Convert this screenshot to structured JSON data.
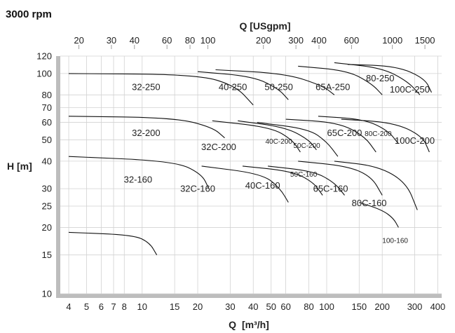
{
  "chart_data": {
    "type": "line",
    "title": "3000 rpm",
    "xlabel_bottom": {
      "main": "Q",
      "unit": "[m³/h]"
    },
    "xlabel_top": "Q [USgpm]",
    "ylabel": "H [m]",
    "x_scale": "log",
    "y_scale": "log",
    "xlim": [
      3.6,
      420
    ],
    "ylim": [
      10,
      120
    ],
    "grid": true,
    "x_ticks_bottom": [
      "4",
      "5",
      "6",
      "7",
      "8",
      "10",
      "15",
      "20",
      "30",
      "40",
      "50",
      "60",
      "80",
      "100",
      "150",
      "200",
      "300",
      "400"
    ],
    "x_ticks_top": [
      "20",
      "30",
      "40",
      "60",
      "80",
      "100",
      "200",
      "300",
      "400",
      "600",
      "1000",
      "1500"
    ],
    "y_ticks": [
      "10",
      "15",
      "20",
      "25",
      "30",
      "40",
      "50",
      "60",
      "70",
      "80",
      "100",
      "120"
    ],
    "series": [
      {
        "name": "32-250",
        "points": [
          [
            4,
            100
          ],
          [
            20,
            99
          ],
          [
            32,
            88
          ],
          [
            40,
            72
          ]
        ]
      },
      {
        "name": "40-250",
        "points": [
          [
            20,
            102
          ],
          [
            40,
            97
          ],
          [
            55,
            85
          ],
          [
            62,
            76
          ]
        ]
      },
      {
        "name": "50-250",
        "points": [
          [
            25,
            104
          ],
          [
            60,
            100
          ],
          [
            95,
            88
          ],
          [
            110,
            80
          ]
        ]
      },
      {
        "name": "65A-250",
        "points": [
          [
            70,
            108
          ],
          [
            130,
            103
          ],
          [
            175,
            90
          ],
          [
            200,
            80
          ]
        ]
      },
      {
        "name": "80-250",
        "points": [
          [
            110,
            112
          ],
          [
            200,
            106
          ],
          [
            275,
            92
          ],
          [
            320,
            80
          ]
        ]
      },
      {
        "name": "100C-250",
        "points": [
          [
            130,
            110
          ],
          [
            240,
            108
          ],
          [
            340,
            95
          ],
          [
            370,
            82
          ]
        ]
      },
      {
        "name": "32-200",
        "points": [
          [
            4,
            64
          ],
          [
            15,
            63
          ],
          [
            24,
            57
          ],
          [
            28,
            51
          ]
        ]
      },
      {
        "name": "32C-200",
        "points": [
          [
            24,
            61
          ],
          [
            50,
            57
          ],
          [
            65,
            50
          ],
          [
            72,
            44
          ]
        ]
      },
      {
        "name": "40C-200",
        "points": [
          [
            33,
            61
          ],
          [
            60,
            57
          ],
          [
            80,
            50
          ],
          [
            88,
            45
          ]
        ]
      },
      {
        "name": "50C-200",
        "points": [
          [
            42,
            60
          ],
          [
            80,
            56
          ],
          [
            100,
            49
          ],
          [
            115,
            42
          ]
        ]
      },
      {
        "name": "65C-200",
        "points": [
          [
            60,
            62
          ],
          [
            115,
            60
          ],
          [
            160,
            52
          ],
          [
            185,
            44
          ]
        ]
      },
      {
        "name": "80C-200",
        "points": [
          [
            90,
            64
          ],
          [
            160,
            62
          ],
          [
            215,
            55
          ],
          [
            245,
            48
          ]
        ]
      },
      {
        "name": "100C-200",
        "points": [
          [
            120,
            62
          ],
          [
            230,
            60
          ],
          [
            330,
            52
          ],
          [
            360,
            44
          ]
        ]
      },
      {
        "name": "32-160",
        "points": [
          [
            4,
            42
          ],
          [
            15,
            40
          ],
          [
            21,
            35
          ],
          [
            23,
            30
          ]
        ]
      },
      {
        "name": "32C-160",
        "points": [
          [
            21,
            38
          ],
          [
            45,
            35
          ],
          [
            56,
            30
          ],
          [
            62,
            26
          ]
        ]
      },
      {
        "name": "40C-160",
        "points": [
          [
            35,
            38
          ],
          [
            65,
            36
          ],
          [
            85,
            32
          ],
          [
            95,
            28
          ]
        ]
      },
      {
        "name": "50C-160",
        "points": [
          [
            48,
            38
          ],
          [
            85,
            36
          ],
          [
            110,
            32
          ],
          [
            125,
            28
          ]
        ]
      },
      {
        "name": "65C-160",
        "points": [
          [
            70,
            40
          ],
          [
            130,
            38
          ],
          [
            175,
            34
          ],
          [
            200,
            28
          ]
        ]
      },
      {
        "name": "80C-160",
        "points": [
          [
            110,
            40
          ],
          [
            190,
            38
          ],
          [
            270,
            32
          ],
          [
            310,
            24
          ]
        ]
      },
      {
        "name": "100-160",
        "points": [
          [
            150,
            26
          ],
          [
            200,
            24
          ],
          [
            230,
            22
          ],
          [
            245,
            20
          ]
        ]
      },
      {
        "name": "",
        "points": [
          [
            4,
            19
          ],
          [
            9,
            18.5
          ],
          [
            11,
            17
          ],
          [
            12,
            15
          ]
        ]
      }
    ],
    "labels": [
      {
        "text": "32-250",
        "x": 10.5,
        "y": 84
      },
      {
        "text": "40-250",
        "x": 31,
        "y": 84
      },
      {
        "text": "50-250",
        "x": 55,
        "y": 84
      },
      {
        "text": "65A-250",
        "x": 108,
        "y": 84
      },
      {
        "text": "80-250",
        "x": 195,
        "y": 92
      },
      {
        "text": "100C-250",
        "x": 282,
        "y": 82
      },
      {
        "text": "32-200",
        "x": 10.5,
        "y": 52
      },
      {
        "text": "32C-200",
        "x": 26,
        "y": 45
      },
      {
        "text": "40C-200",
        "x": 55,
        "y": 48
      },
      {
        "text": "50C-200",
        "x": 78,
        "y": 46
      },
      {
        "text": "65C-200",
        "x": 125,
        "y": 52
      },
      {
        "text": "80C-200",
        "x": 190,
        "y": 52
      },
      {
        "text": "100C-200",
        "x": 300,
        "y": 48
      },
      {
        "text": "32-160",
        "x": 9.5,
        "y": 32
      },
      {
        "text": "32C-160",
        "x": 20,
        "y": 29
      },
      {
        "text": "40C-160",
        "x": 45,
        "y": 30
      },
      {
        "text": "50C-160",
        "x": 75,
        "y": 34
      },
      {
        "text": "65C-160",
        "x": 105,
        "y": 29
      },
      {
        "text": "80C-160",
        "x": 170,
        "y": 25
      },
      {
        "text": "100-160",
        "x": 235,
        "y": 17
      }
    ]
  }
}
